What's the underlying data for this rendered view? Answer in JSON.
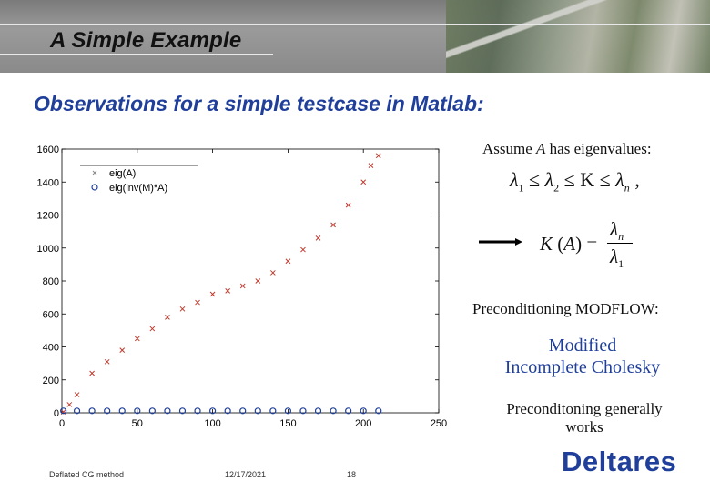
{
  "header": {
    "title": "A Simple Example"
  },
  "subtitle": "Observations for a simple testcase in Matlab:",
  "right_panel": {
    "assume_prefix": "Assume ",
    "assume_var": "A",
    "assume_suffix": " has eigenvalues:",
    "precond_label": "Preconditioning MODFLOW:",
    "method_line1": "Modified",
    "method_line2": "Incomplete Cholesky",
    "works_line1": "Preconditoning generally",
    "works_line2": "works"
  },
  "footer": {
    "left": "Deflated CG method",
    "date": "12/17/2021",
    "page": "18"
  },
  "logo": "Deltares",
  "colors": {
    "accent": "#1f3f9a",
    "series_a": "#c0392b",
    "series_b": "#1f3f9a"
  },
  "chart_data": {
    "type": "scatter",
    "title": "",
    "xlabel": "",
    "ylabel": "",
    "xlim": [
      0,
      250
    ],
    "ylim": [
      0,
      1600
    ],
    "x_ticks": [
      0,
      50,
      100,
      150,
      200,
      250
    ],
    "y_ticks": [
      0,
      200,
      400,
      600,
      800,
      1000,
      1200,
      1400,
      1600
    ],
    "legend_position": "top-left",
    "series": [
      {
        "name": "eig(A)",
        "marker": "x",
        "x": [
          1,
          5,
          10,
          20,
          30,
          40,
          50,
          60,
          70,
          80,
          90,
          100,
          110,
          120,
          130,
          140,
          150,
          160,
          170,
          180,
          190,
          200,
          205,
          210
        ],
        "values": [
          5,
          50,
          110,
          240,
          310,
          380,
          450,
          510,
          580,
          630,
          670,
          720,
          740,
          770,
          800,
          850,
          920,
          990,
          1060,
          1140,
          1260,
          1400,
          1500,
          1560
        ]
      },
      {
        "name": "eig(inv(M)*A)",
        "marker": "o",
        "x": [
          1,
          10,
          20,
          30,
          40,
          50,
          60,
          70,
          80,
          90,
          100,
          110,
          120,
          130,
          140,
          150,
          160,
          170,
          180,
          190,
          200,
          210
        ],
        "values": [
          1,
          1,
          1,
          1,
          1,
          1,
          1,
          1,
          1,
          1,
          1,
          1,
          1,
          1,
          1,
          1,
          1,
          1,
          1,
          1,
          1,
          1
        ]
      }
    ]
  }
}
